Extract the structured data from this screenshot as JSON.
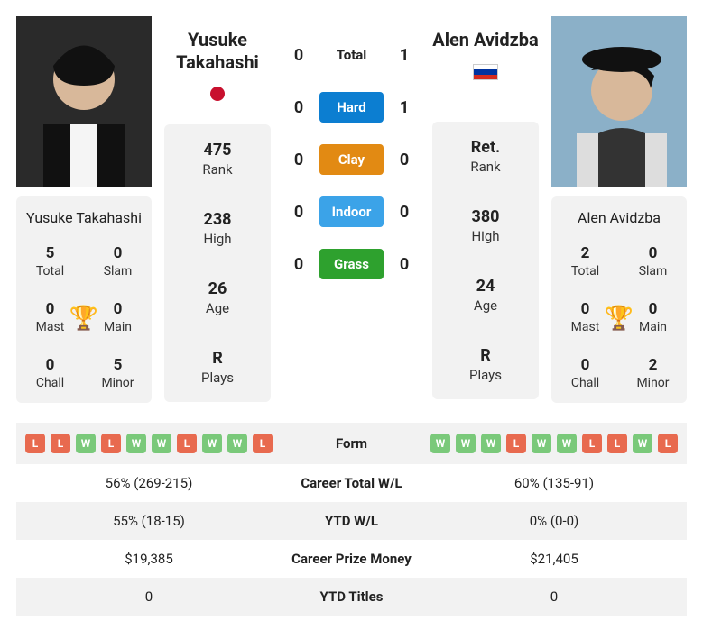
{
  "player1": {
    "name_line1": "Yusuke",
    "name_line2": "Takahashi",
    "full_name": "Yusuke Takahashi",
    "flag_color": "#c8102e",
    "stats": {
      "rank": "475",
      "rank_label": "Rank",
      "high": "238",
      "high_label": "High",
      "age": "26",
      "age_label": "Age",
      "plays": "R",
      "plays_label": "Plays"
    },
    "titles": {
      "total": "5",
      "total_label": "Total",
      "slam": "0",
      "slam_label": "Slam",
      "mast": "0",
      "mast_label": "Mast",
      "main": "0",
      "main_label": "Main",
      "chall": "0",
      "chall_label": "Chall",
      "minor": "5",
      "minor_label": "Minor"
    },
    "form": [
      "L",
      "L",
      "W",
      "L",
      "W",
      "W",
      "L",
      "W",
      "W",
      "L"
    ],
    "career_wl": "56% (269-215)",
    "ytd_wl": "55% (18-15)",
    "prize": "$19,385",
    "ytd_titles": "0"
  },
  "player2": {
    "name_line1": "Alen Avidzba",
    "name_line2": "",
    "full_name": "Alen Avidzba",
    "flag_colors": [
      "#ffffff",
      "#0033a0",
      "#d52b1e"
    ],
    "stats": {
      "rank": "Ret.",
      "rank_label": "Rank",
      "high": "380",
      "high_label": "High",
      "age": "24",
      "age_label": "Age",
      "plays": "R",
      "plays_label": "Plays"
    },
    "titles": {
      "total": "2",
      "total_label": "Total",
      "slam": "0",
      "slam_label": "Slam",
      "mast": "0",
      "mast_label": "Mast",
      "main": "0",
      "main_label": "Main",
      "chall": "0",
      "chall_label": "Chall",
      "minor": "2",
      "minor_label": "Minor"
    },
    "form": [
      "W",
      "W",
      "W",
      "L",
      "W",
      "W",
      "L",
      "L",
      "W",
      "L"
    ],
    "career_wl": "60% (135-91)",
    "ytd_wl": "0% (0-0)",
    "prize": "$21,405",
    "ytd_titles": "0"
  },
  "h2h": {
    "total_label": "Total",
    "p1_total": "0",
    "p2_total": "1",
    "hard_label": "Hard",
    "p1_hard": "0",
    "p2_hard": "1",
    "clay_label": "Clay",
    "p1_clay": "0",
    "p2_clay": "0",
    "indoor_label": "Indoor",
    "p1_indoor": "0",
    "p2_indoor": "0",
    "grass_label": "Grass",
    "p1_grass": "0",
    "p2_grass": "0"
  },
  "table_labels": {
    "form": "Form",
    "career_wl": "Career Total W/L",
    "ytd_wl": "YTD W/L",
    "prize": "Career Prize Money",
    "ytd_titles": "YTD Titles"
  }
}
